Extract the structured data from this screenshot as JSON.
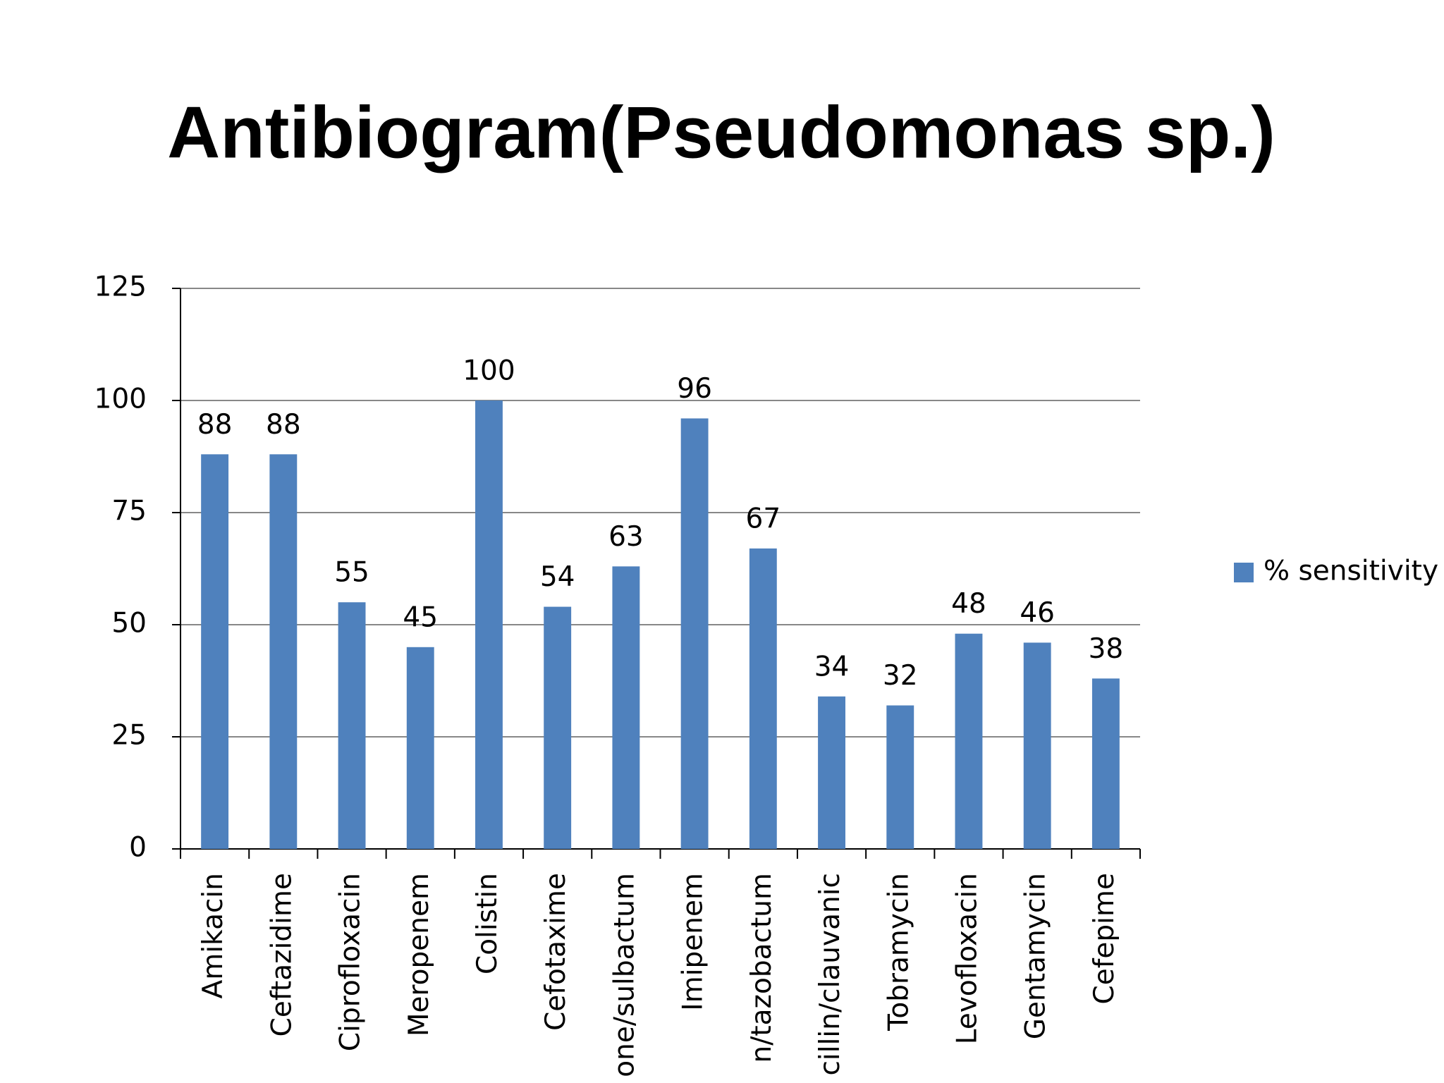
{
  "chart_data": {
    "type": "bar",
    "title": "Antibiogram(Pseudomonas sp.)",
    "categories": [
      "Amikacin",
      "Ceftazidime",
      "Ciprofloxacin",
      "Meropenem",
      "Colistin",
      "Cefotaxime",
      "one/sulbactum",
      "Imipenem",
      "n/tazobactum",
      "cillin/clauvanic",
      "Tobramycin",
      "Levofloxacin",
      "Gentamycin",
      "Cefepime"
    ],
    "series": [
      {
        "name": "% sensitivity",
        "color": "#4f81bd",
        "values": [
          88,
          88,
          55,
          45,
          100,
          54,
          63,
          96,
          67,
          34,
          32,
          48,
          46,
          38
        ]
      }
    ],
    "ylim": [
      0,
      125
    ],
    "yticks": [
      0,
      25,
      50,
      75,
      100,
      125
    ],
    "grid": true,
    "legend": "right"
  }
}
